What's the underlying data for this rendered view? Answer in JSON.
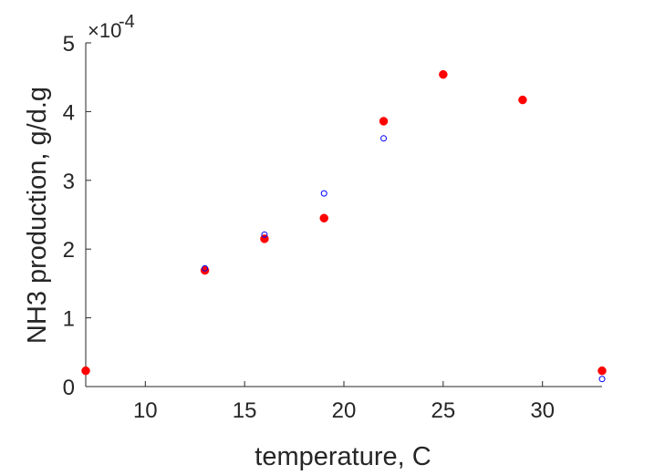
{
  "chart_data": {
    "type": "scatter",
    "title": "",
    "xlabel": "temperature, C",
    "ylabel": "NH3 production, g/d.g",
    "y_multiplier_base": "×10",
    "y_multiplier_exponent": "-4",
    "xlim": [
      7,
      33
    ],
    "ylim": [
      0,
      5
    ],
    "xticks": [
      10,
      15,
      20,
      25,
      30
    ],
    "yticks": [
      0,
      1,
      2,
      3,
      4,
      5
    ],
    "grid": false,
    "legend": "none",
    "series": [
      {
        "marker": "filled-circle",
        "color": "#ff0000",
        "points": [
          {
            "x": 7,
            "y": 0.23
          },
          {
            "x": 13,
            "y": 1.69
          },
          {
            "x": 16,
            "y": 2.15
          },
          {
            "x": 19,
            "y": 2.45
          },
          {
            "x": 22,
            "y": 3.86
          },
          {
            "x": 25,
            "y": 4.54
          },
          {
            "x": 29,
            "y": 4.17
          },
          {
            "x": 33,
            "y": 0.23
          }
        ]
      },
      {
        "marker": "open-circle",
        "color": "#0000ff",
        "points": [
          {
            "x": 13,
            "y": 1.72
          },
          {
            "x": 16,
            "y": 2.21
          },
          {
            "x": 19,
            "y": 2.81
          },
          {
            "x": 22,
            "y": 3.61
          },
          {
            "x": 33,
            "y": 0.11
          }
        ]
      }
    ]
  }
}
